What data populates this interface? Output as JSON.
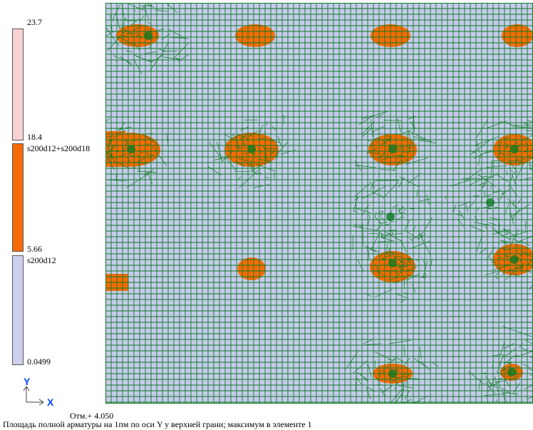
{
  "legend": {
    "ticks": [
      "23.7",
      "18.4",
      "5.66",
      "0.0499"
    ],
    "ranges": [
      {
        "color": "#f9d2d2",
        "label": ""
      },
      {
        "color": "#f76b06",
        "label": "s200d12+s200d18"
      },
      {
        "color": "#cdd0ee",
        "label": "s200d12"
      }
    ]
  },
  "axes": {
    "y_label": "Y",
    "x_label": "X",
    "color": "#0044ff"
  },
  "plot": {
    "background": "#c6cbec",
    "mesh_color": "#0d7a22",
    "zone_color": "#f76b06"
  },
  "footer": {
    "elevation": "Отм.+ 4.050",
    "caption": "Площадь полной арматуры на 1пм по оси Y у верхней грани; максимум в элементе 1"
  }
}
